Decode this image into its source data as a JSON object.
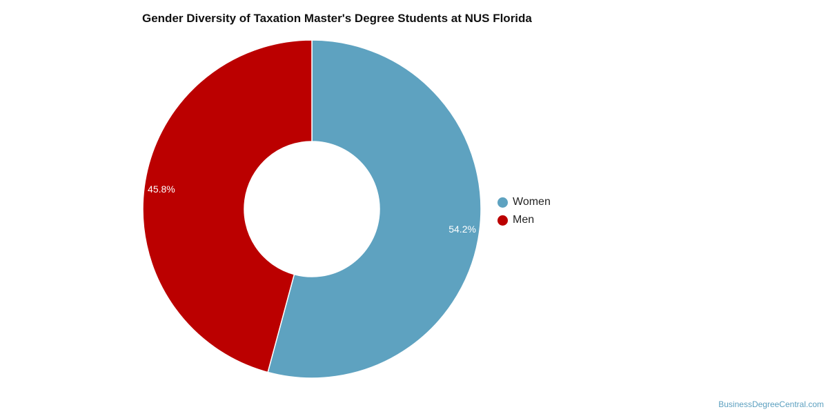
{
  "chart_data": {
    "type": "pie",
    "title": "Gender Diversity of Taxation Master's Degree Students at NUS Florida",
    "categories": [
      "Women",
      "Men"
    ],
    "values": [
      54.2,
      45.8
    ],
    "labels": [
      "54.2%",
      "45.8%"
    ],
    "colors": [
      "#5ea2c0",
      "#bb0000"
    ],
    "donut": true,
    "legend_position": "right"
  },
  "credit": "BusinessDegreeCentral.com"
}
